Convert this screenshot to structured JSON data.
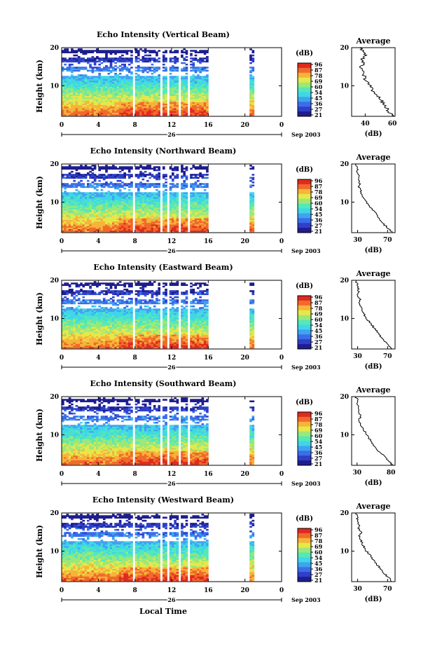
{
  "colors": {
    "colormap": [
      "#1f1d8f",
      "#2f3fc8",
      "#3a6ee8",
      "#3fa3f0",
      "#3fd6e8",
      "#55e8b8",
      "#9be87a",
      "#e6e84a",
      "#f7b33a",
      "#f06a2a",
      "#e02a20"
    ],
    "text": "#000000"
  },
  "shared": {
    "xlabel": "Local Time",
    "date_label": "26",
    "month_label": "Sep 2003",
    "colorbar_unit": "(dB)",
    "colorbar_ticks": [
      "96",
      "87",
      "78",
      "69",
      "60",
      "54",
      "45",
      "36",
      "27",
      "21"
    ],
    "average_title": "Average",
    "average_xlabel": "(dB)",
    "x_ticks": [
      "0",
      "4",
      "8",
      "12",
      "16",
      "20",
      "0"
    ],
    "y_ticks": [
      "20",
      "10"
    ],
    "ylabel": "Height (km)"
  },
  "chart_data": [
    {
      "type": "heatmap",
      "title": "Echo Intensity (Vertical Beam)",
      "ylabel": "Height (km)",
      "xlim": [
        0,
        24
      ],
      "ylim": [
        2,
        20
      ],
      "colorbar_ticks": [
        "96",
        "87",
        "78",
        "69",
        "60",
        "54",
        "45",
        "36",
        "27",
        "21"
      ],
      "average": {
        "x_ticks": [
          "40",
          "60"
        ],
        "xlim": [
          30,
          62
        ],
        "profile": [
          [
            2,
            60
          ],
          [
            3,
            58
          ],
          [
            4,
            56
          ],
          [
            5,
            54
          ],
          [
            6,
            52
          ],
          [
            7,
            50
          ],
          [
            8,
            48
          ],
          [
            9,
            45
          ],
          [
            10,
            43
          ],
          [
            11,
            41
          ],
          [
            12,
            40
          ],
          [
            13,
            39
          ],
          [
            14,
            38
          ],
          [
            15,
            37
          ],
          [
            16,
            39
          ],
          [
            17,
            38
          ],
          [
            18,
            40
          ],
          [
            19,
            38
          ],
          [
            20,
            36
          ]
        ]
      }
    },
    {
      "type": "heatmap",
      "title": "Echo Intensity (Northward Beam)",
      "ylabel": "Height (km)",
      "xlim": [
        0,
        24
      ],
      "ylim": [
        2,
        20
      ],
      "colorbar_ticks": [
        "96",
        "87",
        "78",
        "69",
        "60",
        "54",
        "45",
        "36",
        "27",
        "21"
      ],
      "average": {
        "x_ticks": [
          "30",
          "70"
        ],
        "xlim": [
          22,
          80
        ],
        "profile": [
          [
            2,
            76
          ],
          [
            3,
            72
          ],
          [
            4,
            66
          ],
          [
            5,
            62
          ],
          [
            6,
            58
          ],
          [
            7,
            54
          ],
          [
            8,
            50
          ],
          [
            9,
            46
          ],
          [
            10,
            42
          ],
          [
            11,
            39
          ],
          [
            12,
            36
          ],
          [
            13,
            34
          ],
          [
            14,
            32
          ],
          [
            15,
            33
          ],
          [
            16,
            30
          ],
          [
            17,
            32
          ],
          [
            18,
            30
          ],
          [
            19,
            29
          ],
          [
            20,
            28
          ]
        ]
      }
    },
    {
      "type": "heatmap",
      "title": "Echo Intensity (Eastward Beam)",
      "ylabel": "Height (km)",
      "xlim": [
        0,
        24
      ],
      "ylim": [
        2,
        20
      ],
      "colorbar_ticks": [
        "96",
        "87",
        "78",
        "69",
        "60",
        "54",
        "45",
        "36",
        "27",
        "21"
      ],
      "average": {
        "x_ticks": [
          "30",
          "70"
        ],
        "xlim": [
          22,
          80
        ],
        "profile": [
          [
            2,
            76
          ],
          [
            3,
            72
          ],
          [
            4,
            66
          ],
          [
            5,
            62
          ],
          [
            6,
            58
          ],
          [
            7,
            54
          ],
          [
            8,
            50
          ],
          [
            9,
            46
          ],
          [
            10,
            42
          ],
          [
            11,
            39
          ],
          [
            12,
            36
          ],
          [
            13,
            34
          ],
          [
            14,
            32
          ],
          [
            15,
            34
          ],
          [
            16,
            30
          ],
          [
            17,
            32
          ],
          [
            18,
            30
          ],
          [
            19,
            29
          ],
          [
            20,
            28
          ]
        ]
      }
    },
    {
      "type": "heatmap",
      "title": "Echo Intensity (Southward Beam)",
      "ylabel": "Height (km)",
      "xlim": [
        0,
        24
      ],
      "ylim": [
        2,
        20
      ],
      "colorbar_ticks": [
        "96",
        "87",
        "78",
        "69",
        "60",
        "54",
        "45",
        "36",
        "27",
        "21"
      ],
      "average": {
        "x_ticks": [
          "30",
          "80"
        ],
        "xlim": [
          22,
          86
        ],
        "profile": [
          [
            2,
            82
          ],
          [
            3,
            78
          ],
          [
            4,
            72
          ],
          [
            5,
            66
          ],
          [
            6,
            60
          ],
          [
            7,
            56
          ],
          [
            8,
            52
          ],
          [
            9,
            48
          ],
          [
            10,
            44
          ],
          [
            11,
            41
          ],
          [
            12,
            38
          ],
          [
            13,
            35
          ],
          [
            14,
            33
          ],
          [
            15,
            36
          ],
          [
            16,
            32
          ],
          [
            17,
            33
          ],
          [
            18,
            30
          ],
          [
            19,
            31
          ],
          [
            20,
            28
          ]
        ]
      }
    },
    {
      "type": "heatmap",
      "title": "Echo Intensity (Westward Beam)",
      "ylabel": "Height (km)",
      "xlim": [
        0,
        24
      ],
      "ylim": [
        2,
        20
      ],
      "colorbar_ticks": [
        "96",
        "87",
        "78",
        "69",
        "60",
        "54",
        "45",
        "36",
        "27",
        "21"
      ],
      "average": {
        "x_ticks": [
          "30",
          "70"
        ],
        "xlim": [
          22,
          80
        ],
        "profile": [
          [
            2,
            76
          ],
          [
            3,
            72
          ],
          [
            4,
            66
          ],
          [
            5,
            62
          ],
          [
            6,
            58
          ],
          [
            7,
            54
          ],
          [
            8,
            50
          ],
          [
            9,
            46
          ],
          [
            10,
            42
          ],
          [
            11,
            39
          ],
          [
            12,
            36
          ],
          [
            13,
            34
          ],
          [
            14,
            32
          ],
          [
            15,
            35
          ],
          [
            16,
            30
          ],
          [
            17,
            32
          ],
          [
            18,
            30
          ],
          [
            19,
            29
          ],
          [
            20,
            28
          ]
        ]
      }
    }
  ]
}
